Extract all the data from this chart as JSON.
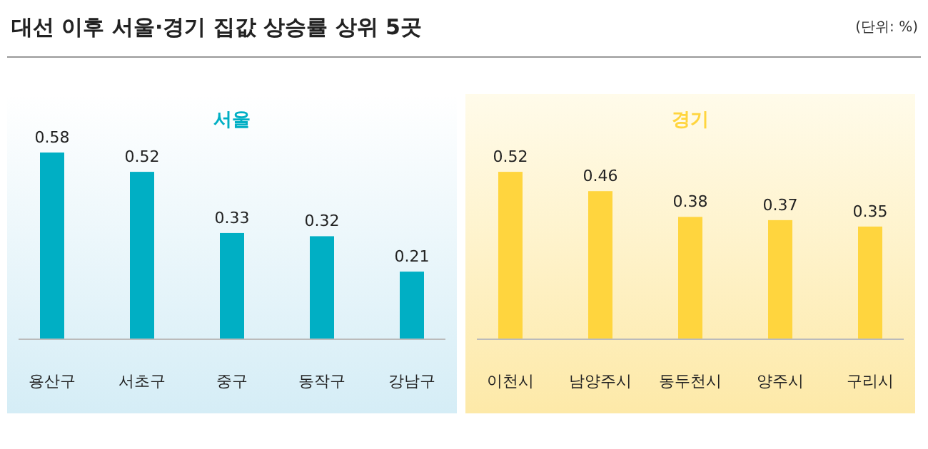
{
  "chart_data": [
    {
      "type": "bar",
      "title": "서울",
      "categories": [
        "용산구",
        "서초구",
        "중구",
        "동작구",
        "강남구"
      ],
      "values": [
        0.58,
        0.52,
        0.33,
        0.32,
        0.21
      ],
      "color": "#00afc4",
      "data_labels": true,
      "annotations": [
        "대선 이후 서울·경기 집값 상승률 상위 5곳",
        "(단위: %)"
      ]
    },
    {
      "type": "bar",
      "title": "경기",
      "categories": [
        "이천시",
        "남양주시",
        "동두천시",
        "양주시",
        "구리시"
      ],
      "values": [
        0.52,
        0.46,
        0.38,
        0.37,
        0.35
      ],
      "color": "#ffd53e",
      "data_labels": true
    }
  ]
}
